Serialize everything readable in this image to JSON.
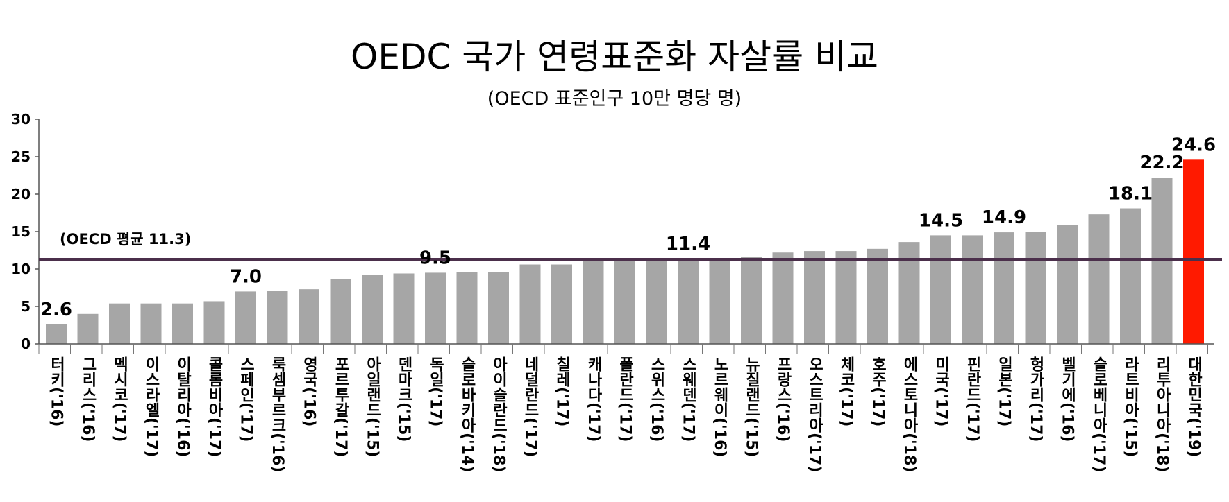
{
  "header": {
    "title": "OEDC 국가 연령표준화 자살률 비교",
    "subtitle": "(OECD 표준인구 10만 명당 명)"
  },
  "colors": {
    "bar": "#a6a6a6",
    "highlight": "#ff1a00",
    "average_line": "#4b2f4b"
  },
  "chart_data": {
    "type": "bar",
    "title": "OEDC 국가 연령표준화 자살률 비교",
    "subtitle": "(OECD 표준인구 10만 명당 명)",
    "xlabel": "",
    "ylabel": "",
    "ylim": [
      0,
      30
    ],
    "yticks": [
      0,
      5,
      10,
      15,
      20,
      25,
      30
    ],
    "grid": false,
    "legend": "none",
    "categories": [
      "터키('16)",
      "그리스('16)",
      "멕시코('17)",
      "이스라엘('17)",
      "이탈리아('16)",
      "콜롬비아('17)",
      "스페인('17)",
      "룩셈부르크('16)",
      "영국('16)",
      "포르투갈('17)",
      "아일랜드('15)",
      "덴마크('15)",
      "독일('17)",
      "슬로바키아('14)",
      "아이슬란드('18)",
      "네덜란드('17)",
      "칠레('17)",
      "캐나다('17)",
      "폴란드('17)",
      "스위스('16)",
      "스웨덴('17)",
      "노르웨이('16)",
      "뉴질랜드('15)",
      "프랑스('16)",
      "오스트리아('17)",
      "체코('17)",
      "호주('17)",
      "에스토니아('18)",
      "미국('17)",
      "핀란드('17)",
      "일본('17)",
      "헝가리('17)",
      "벨기에('16)",
      "슬로베니아('17)",
      "라트비아('15)",
      "리투아니아('18)",
      "대한민국('19)"
    ],
    "values": [
      2.6,
      4.0,
      5.4,
      5.4,
      5.4,
      5.7,
      7.0,
      7.1,
      7.3,
      8.7,
      9.2,
      9.4,
      9.5,
      9.6,
      9.6,
      10.6,
      10.6,
      11.1,
      11.2,
      11.3,
      11.4,
      11.4,
      11.6,
      12.2,
      12.4,
      12.4,
      12.7,
      13.6,
      14.5,
      14.5,
      14.9,
      15.0,
      15.9,
      17.3,
      18.1,
      22.2,
      24.6
    ],
    "data_labels": {
      "0": "2.6",
      "6": "7.0",
      "12": "9.5",
      "20": "11.4",
      "28": "14.5",
      "30": "14.9",
      "34": "18.1",
      "35": "22.2",
      "36": "24.6"
    },
    "highlight_index": 36,
    "reference_line": {
      "value": 11.3,
      "label": "(OECD 평균 11.3)"
    }
  }
}
